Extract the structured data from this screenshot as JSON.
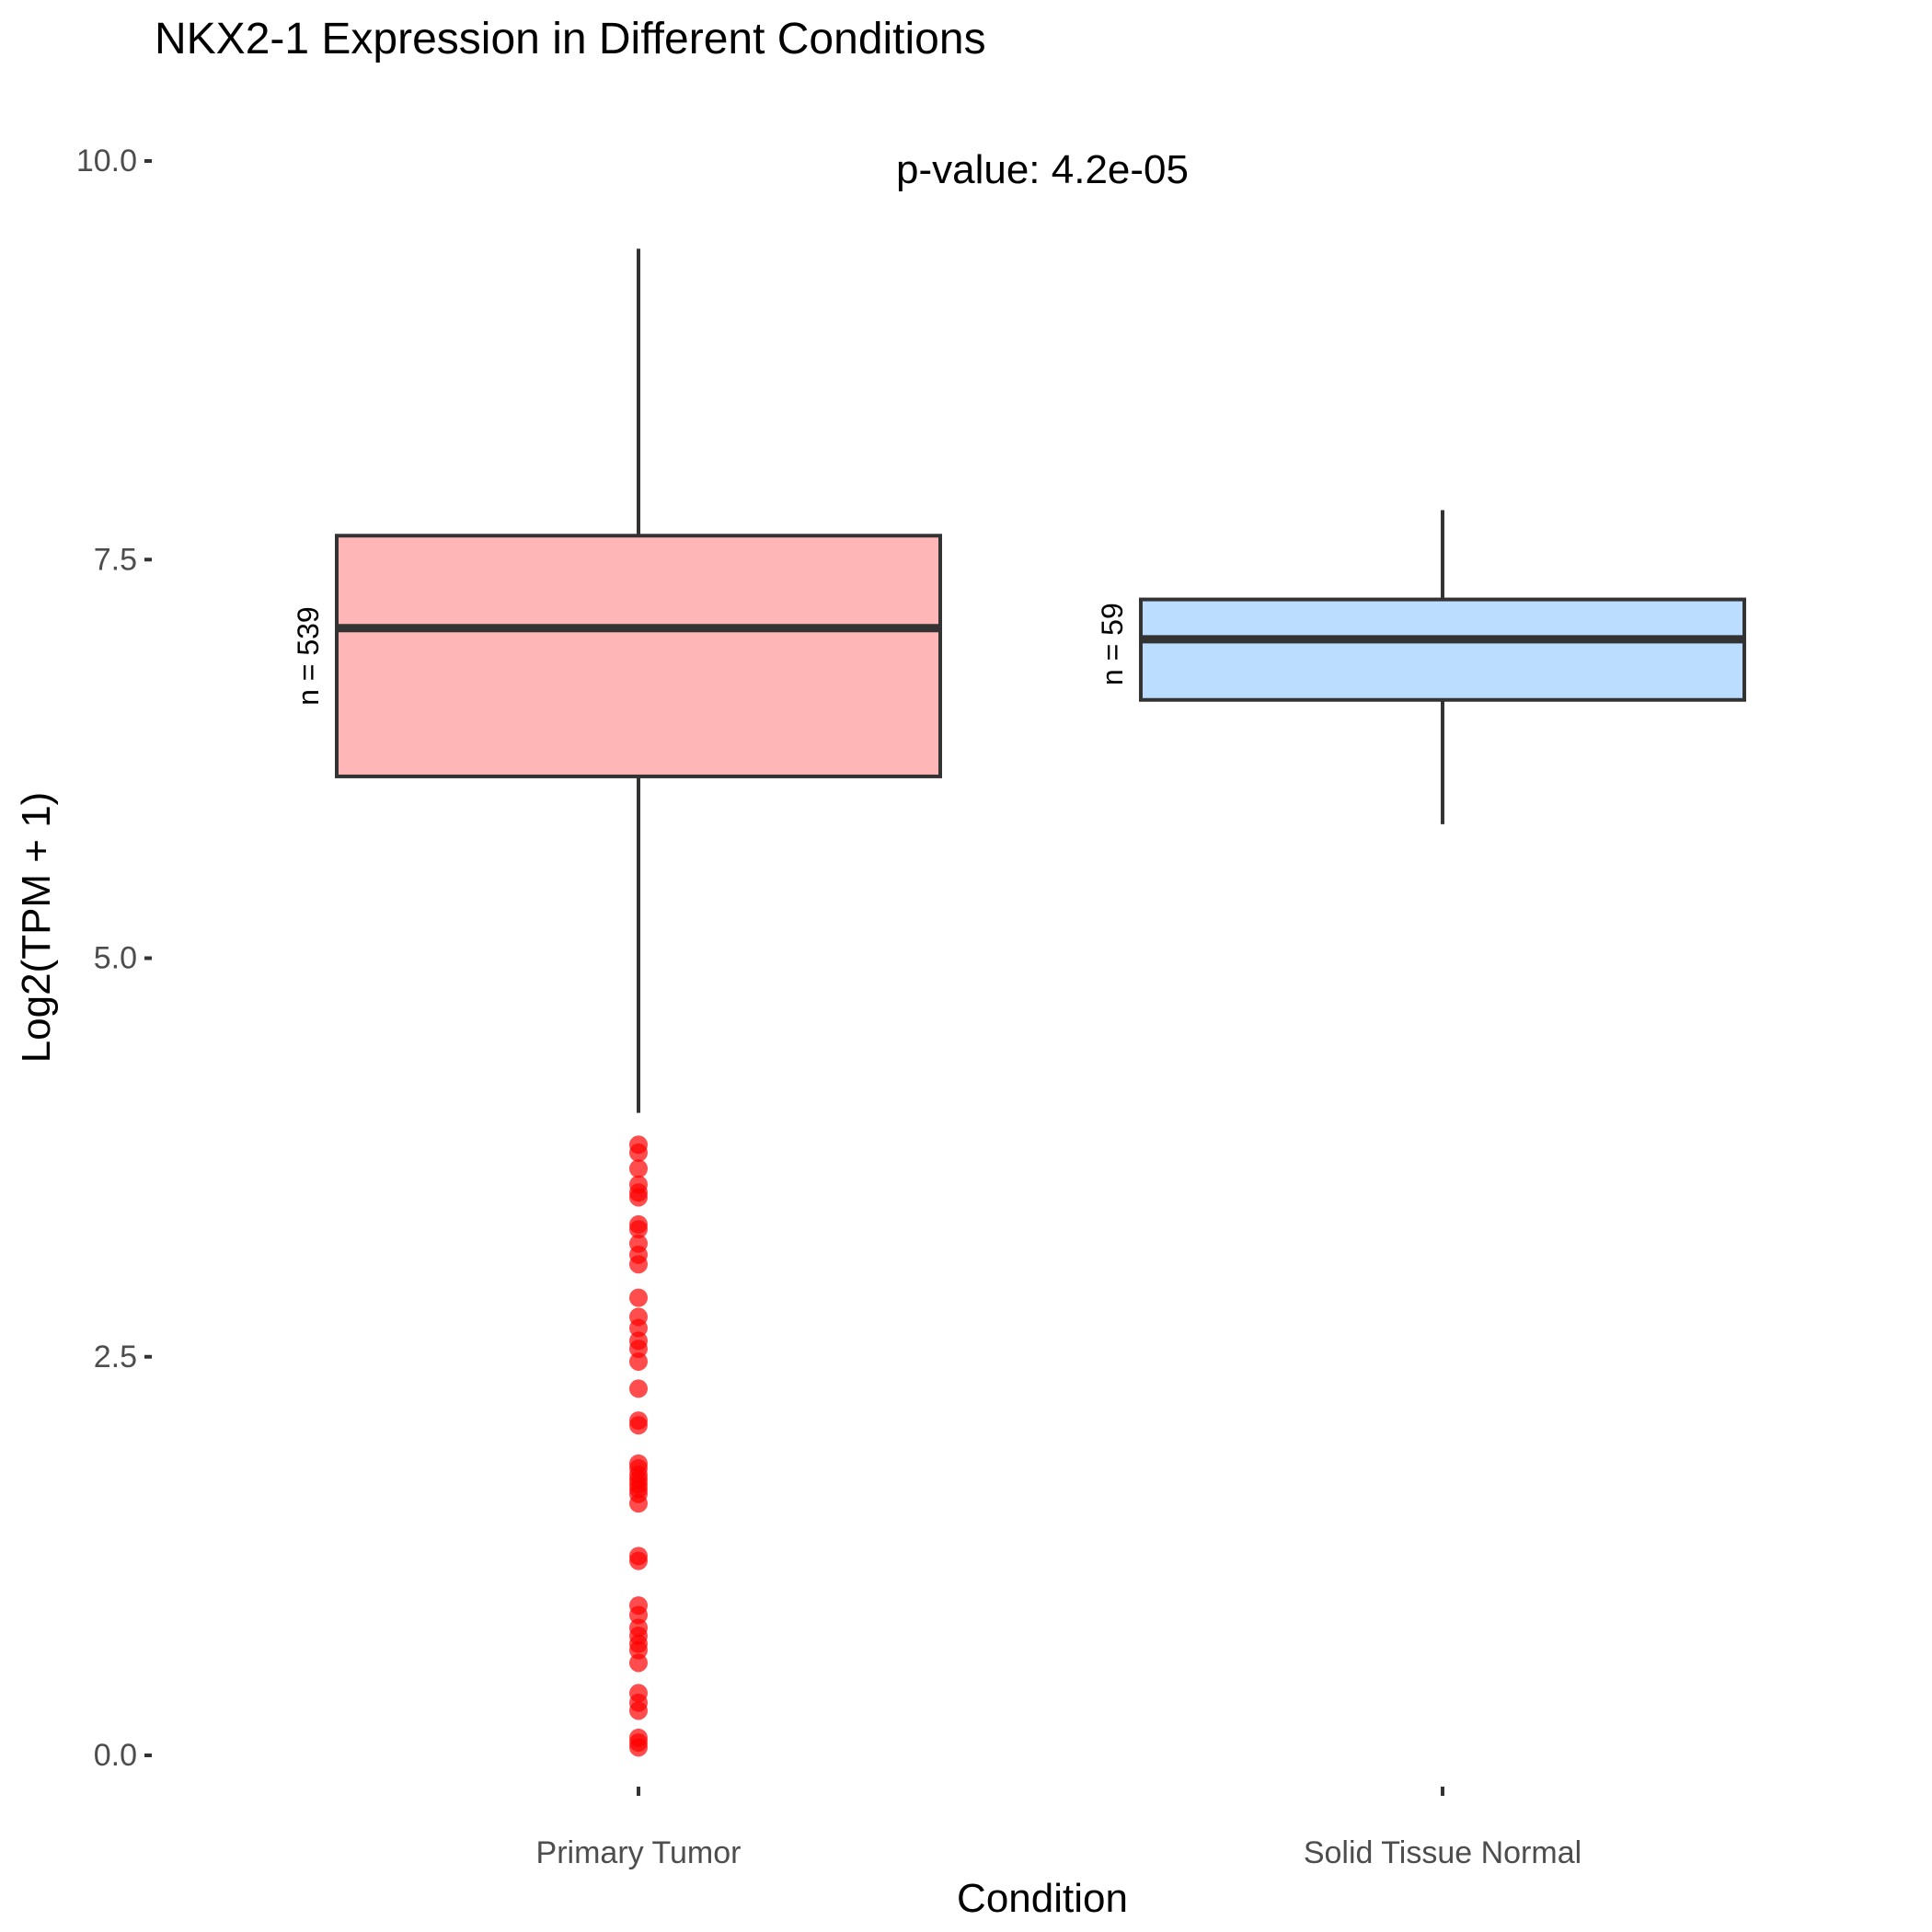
{
  "chart_data": {
    "type": "boxplot",
    "title": "NKX2-1 Expression in Different Conditions",
    "xlabel": "Condition",
    "ylabel": "Log2(TPM + 1)",
    "annotation": "p-value: 4.2e-05",
    "ylim": [
      -0.37,
      10.27
    ],
    "yticks": [
      0.0,
      2.5,
      5.0,
      7.5,
      10.0
    ],
    "ytick_labels": [
      "0.0",
      "2.5",
      "5.0",
      "7.5",
      "10.0"
    ],
    "grid": false,
    "legend": "none",
    "categories": [
      "Primary Tumor",
      "Solid Tissue Normal"
    ],
    "boxes": [
      {
        "category": "Primary Tumor",
        "count_label": "n = 539",
        "whisker_low": 4.03,
        "q1": 6.14,
        "median": 7.07,
        "q3": 7.65,
        "whisker_high": 9.45,
        "fill": "#FFB6B6",
        "outliers": [
          3.83,
          3.78,
          3.68,
          3.58,
          3.53,
          3.5,
          3.33,
          3.3,
          3.21,
          3.14,
          3.08,
          2.87,
          2.75,
          2.68,
          2.6,
          2.55,
          2.47,
          2.3,
          2.1,
          2.07,
          1.83,
          1.8,
          1.76,
          1.73,
          1.7,
          1.67,
          1.64,
          1.58,
          1.25,
          1.22,
          0.94,
          0.88,
          0.8,
          0.75,
          0.7,
          0.66,
          0.58,
          0.39,
          0.33,
          0.28,
          0.11,
          0.08,
          0.05
        ]
      },
      {
        "category": "Solid Tissue Normal",
        "count_label": "n = 59",
        "whisker_low": 5.84,
        "q1": 6.62,
        "median": 7.0,
        "q3": 7.25,
        "whisker_high": 7.81,
        "fill": "#BBDDFF",
        "outliers": []
      }
    ],
    "colors": {
      "outlier": "#FF0000",
      "box_line": "#333333",
      "axis_text": "#4D4D4D"
    }
  }
}
